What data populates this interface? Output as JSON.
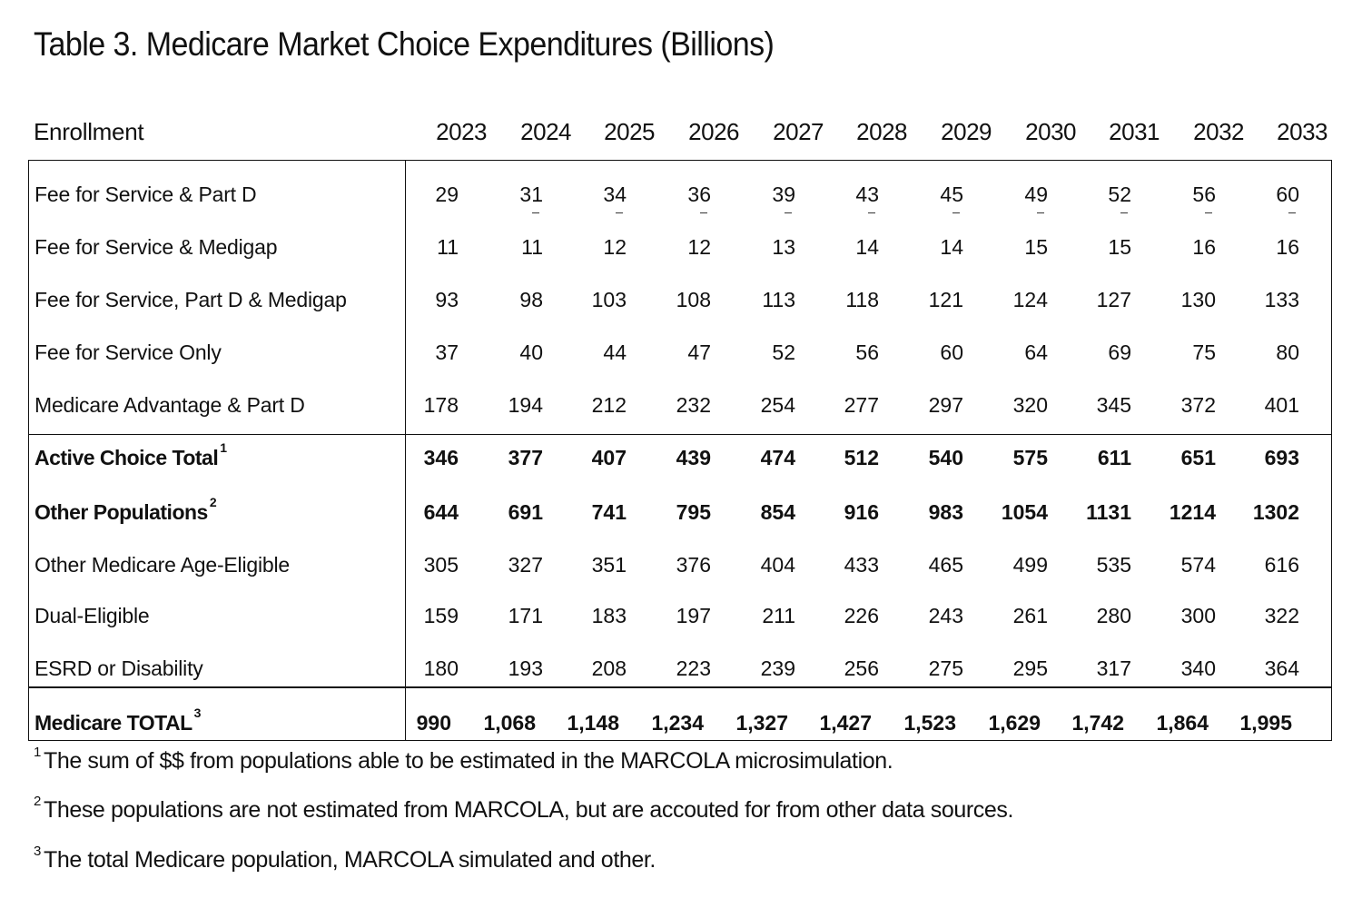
{
  "title": "Table 3. Medicare Market Choice Expenditures (Billions)",
  "table": {
    "header_label": "Enrollment",
    "years": [
      "2023",
      "2024",
      "2025",
      "2026",
      "2027",
      "2028",
      "2029",
      "2030",
      "2031",
      "2032",
      "2033"
    ],
    "rows": [
      {
        "label": "Fee for Service & Part D",
        "footnote": "",
        "bold": false,
        "values": [
          "29",
          "31",
          "34",
          "36",
          "39",
          "43",
          "45",
          "49",
          "52",
          "56",
          "60"
        ],
        "dash_marks": [
          false,
          true,
          true,
          true,
          true,
          true,
          true,
          true,
          true,
          true,
          true
        ]
      },
      {
        "label": "Fee for Service & Medigap",
        "footnote": "",
        "bold": false,
        "values": [
          "11",
          "11",
          "12",
          "12",
          "13",
          "14",
          "14",
          "15",
          "15",
          "16",
          "16"
        ]
      },
      {
        "label": "Fee for Service, Part D & Medigap",
        "footnote": "",
        "bold": false,
        "values": [
          "93",
          "98",
          "103",
          "108",
          "113",
          "118",
          "121",
          "124",
          "127",
          "130",
          "133"
        ]
      },
      {
        "label": "Fee for Service Only",
        "footnote": "",
        "bold": false,
        "values": [
          "37",
          "40",
          "44",
          "47",
          "52",
          "56",
          "60",
          "64",
          "69",
          "75",
          "80"
        ]
      },
      {
        "label": "Medicare Advantage & Part D",
        "footnote": "",
        "bold": false,
        "values": [
          "178",
          "194",
          "212",
          "232",
          "254",
          "277",
          "297",
          "320",
          "345",
          "372",
          "401"
        ]
      },
      {
        "label": "Active Choice Total",
        "footnote": "1",
        "bold": true,
        "values": [
          "346",
          "377",
          "407",
          "439",
          "474",
          "512",
          "540",
          "575",
          "611",
          "651",
          "693"
        ]
      },
      {
        "label": "Other Populations",
        "footnote": "2",
        "bold": true,
        "values": [
          "644",
          "691",
          "741",
          "795",
          "854",
          "916",
          "983",
          "1054",
          "1131",
          "1214",
          "1302"
        ]
      },
      {
        "label": "Other Medicare Age-Eligible",
        "footnote": "",
        "bold": false,
        "values": [
          "305",
          "327",
          "351",
          "376",
          "404",
          "433",
          "465",
          "499",
          "535",
          "574",
          "616"
        ]
      },
      {
        "label": "Dual-Eligible",
        "footnote": "",
        "bold": false,
        "values": [
          "159",
          "171",
          "183",
          "197",
          "211",
          "226",
          "243",
          "261",
          "280",
          "300",
          "322"
        ]
      },
      {
        "label": "ESRD or Disability",
        "footnote": "",
        "bold": false,
        "values": [
          "180",
          "193",
          "208",
          "223",
          "239",
          "256",
          "275",
          "295",
          "317",
          "340",
          "364"
        ]
      },
      {
        "label": "Medicare TOTAL",
        "footnote": "3",
        "bold": true,
        "values": [
          "990",
          "1,068",
          "1,148",
          "1,234",
          "1,327",
          "1,427",
          "1,523",
          "1,629",
          "1,742",
          "1,864",
          "1,995"
        ]
      }
    ]
  },
  "footnotes": [
    {
      "mark": "1",
      "text": "The sum of $$ from populations able to be estimated in the MARCOLA microsimulation."
    },
    {
      "mark": "2",
      "text": "These populations are not estimated from MARCOLA, but are accouted for from other data sources."
    },
    {
      "mark": "3",
      "text": "The total Medicare population, MARCOLA simulated and other."
    }
  ]
}
